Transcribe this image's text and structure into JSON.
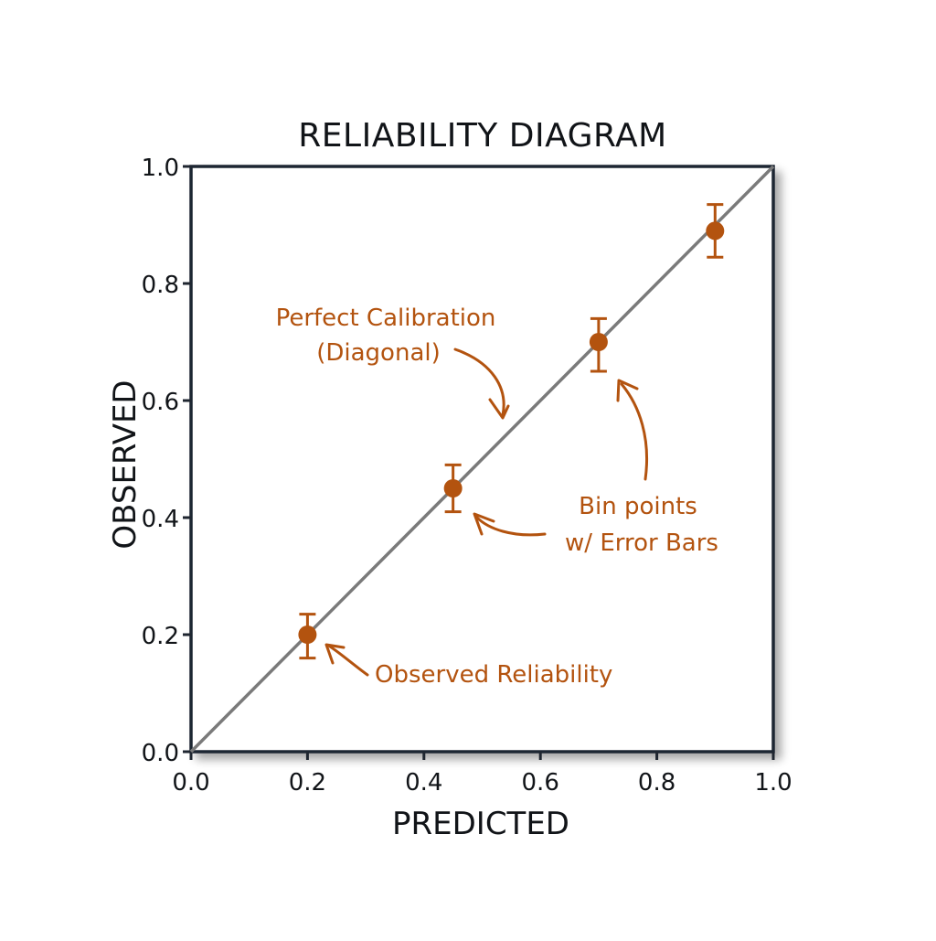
{
  "chart_data": {
    "type": "scatter",
    "title": "RELIABILITY DIAGRAM",
    "xlabel": "PREDICTED",
    "ylabel": "OBSERVED",
    "xlim": [
      0,
      1
    ],
    "ylim": [
      0,
      1
    ],
    "x_ticks": [
      "0.0",
      "0.2",
      "0.4",
      "0.6",
      "0.8",
      "1.0"
    ],
    "y_ticks": [
      "0.0",
      "0.2",
      "0.4",
      "0.6",
      "0.8",
      "1.0"
    ],
    "grid": false,
    "reference_line": {
      "from": [
        0,
        0
      ],
      "to": [
        1,
        1
      ],
      "color": "#7a7a7a"
    },
    "series": [
      {
        "x": [
          0.2,
          0.45,
          0.7,
          0.9
        ],
        "y": [
          0.2,
          0.45,
          0.7,
          0.89
        ],
        "y_err_low": [
          0.16,
          0.41,
          0.65,
          0.845
        ],
        "y_err_high": [
          0.235,
          0.49,
          0.74,
          0.935
        ],
        "color": "#b3530f"
      }
    ],
    "annotations": [
      {
        "text_lines": [
          "Perfect Calibration",
          "(Diagonal)"
        ],
        "target": [
          0.535,
          0.565
        ]
      },
      {
        "text_lines": [
          "Bin points",
          "w/ Error Bars"
        ],
        "target": [
          0.465,
          0.405
        ]
      },
      {
        "text_lines": [
          "Observed Reliability"
        ],
        "target": [
          0.225,
          0.18
        ]
      }
    ],
    "annotation_color": "#b3530f",
    "frame_color": "#1f2630"
  }
}
